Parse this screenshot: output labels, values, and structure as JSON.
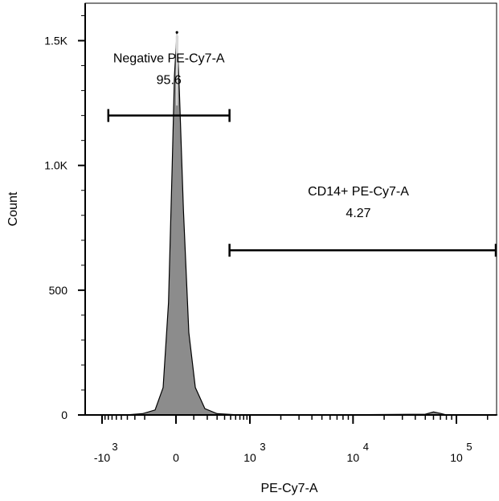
{
  "chart_data": {
    "type": "histogram",
    "xlabel": "PE-Cy7-A",
    "ylabel": "Count",
    "x_scale": "biexponential",
    "ylim": [
      0,
      1650
    ],
    "y_ticks": [
      {
        "value": 0,
        "label": "0"
      },
      {
        "value": 500,
        "label": "500"
      },
      {
        "value": 1000,
        "label": "1.0K"
      },
      {
        "value": 1500,
        "label": "1.5K"
      }
    ],
    "x_ticks": [
      {
        "value": -1000,
        "base": "-10",
        "exp": "3"
      },
      {
        "value": 0,
        "base": "0",
        "exp": ""
      },
      {
        "value": 1000,
        "base": "10",
        "exp": "3"
      },
      {
        "value": 10000,
        "base": "10",
        "exp": "4"
      },
      {
        "value": 100000,
        "base": "10",
        "exp": "5"
      }
    ],
    "fill_color": "#8c8c8c",
    "peak_color": "#d9d9d9",
    "histogram": [
      {
        "x": -420,
        "y": 0
      },
      {
        "x": -220,
        "y": 5
      },
      {
        "x": -120,
        "y": 20
      },
      {
        "x": -70,
        "y": 110
      },
      {
        "x": -40,
        "y": 450
      },
      {
        "x": -20,
        "y": 1000
      },
      {
        "x": -8,
        "y": 1360
      },
      {
        "x": 5,
        "y": 1530
      },
      {
        "x": 18,
        "y": 1300
      },
      {
        "x": 40,
        "y": 820
      },
      {
        "x": 70,
        "y": 330
      },
      {
        "x": 110,
        "y": 110
      },
      {
        "x": 180,
        "y": 25
      },
      {
        "x": 300,
        "y": 5
      },
      {
        "x": 600,
        "y": 1
      },
      {
        "x": 5000,
        "y": 0
      },
      {
        "x": 50000,
        "y": 3
      },
      {
        "x": 60000,
        "y": 12
      },
      {
        "x": 70000,
        "y": 6
      },
      {
        "x": 80000,
        "y": 0
      },
      {
        "x": 250000,
        "y": 0
      }
    ],
    "gates": [
      {
        "name": "Negative PE-Cy7-A",
        "value": "95.6",
        "x_start": -800,
        "x_end": 480,
        "y_level": 1200
      },
      {
        "name": "CD14+ PE-Cy7-A",
        "value": "4.27",
        "x_start": 480,
        "x_end": 250000,
        "y_level": 660
      }
    ]
  }
}
